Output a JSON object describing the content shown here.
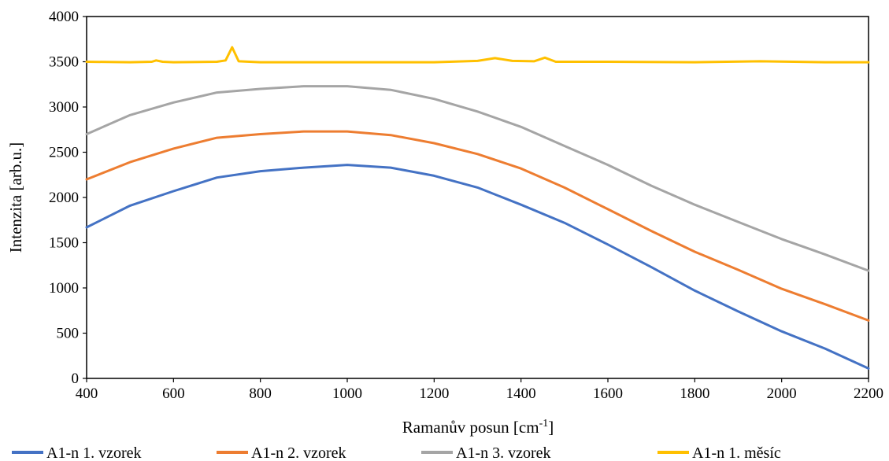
{
  "chart_data": {
    "type": "line",
    "title": "",
    "xlabel": "Ramanův posun [cm",
    "xlabel_sup": "-1",
    "xlabel_end": "]",
    "ylabel": "Intenzita [arb.u.]",
    "xlim": [
      400,
      2200
    ],
    "ylim": [
      0,
      4000
    ],
    "x_ticks": [
      400,
      600,
      800,
      1000,
      1200,
      1400,
      1600,
      1800,
      2000,
      2200
    ],
    "y_ticks": [
      0,
      500,
      1000,
      1500,
      2000,
      2500,
      3000,
      3500,
      4000
    ],
    "x_tick_labels": [
      "400",
      "600",
      "800",
      "1000",
      "1200",
      "1400",
      "1600",
      "1800",
      "2000",
      "2200"
    ],
    "y_tick_labels": [
      "0",
      "500",
      "1000",
      "1500",
      "2000",
      "2500",
      "3000",
      "3500",
      "4000"
    ],
    "grid": false,
    "legend_position": "bottom",
    "series": [
      {
        "name": "A1-n 1. vzorek",
        "color": "#4472C4",
        "x": [
          400,
          500,
          600,
          700,
          800,
          900,
          1000,
          1100,
          1200,
          1300,
          1400,
          1500,
          1600,
          1700,
          1800,
          1900,
          2000,
          2100,
          2200
        ],
        "y": [
          1670,
          1910,
          2070,
          2220,
          2290,
          2330,
          2360,
          2330,
          2240,
          2110,
          1920,
          1720,
          1480,
          1230,
          970,
          740,
          520,
          330,
          110
        ]
      },
      {
        "name": "A1-n 2. vzorek",
        "color": "#ED7D31",
        "x": [
          400,
          500,
          600,
          700,
          800,
          900,
          1000,
          1100,
          1200,
          1300,
          1400,
          1500,
          1600,
          1700,
          1800,
          1900,
          2000,
          2100,
          2200
        ],
        "y": [
          2200,
          2390,
          2540,
          2660,
          2700,
          2730,
          2730,
          2690,
          2600,
          2480,
          2320,
          2110,
          1870,
          1630,
          1400,
          1200,
          990,
          820,
          640
        ]
      },
      {
        "name": "A1-n 3. vzorek",
        "color": "#A5A5A5",
        "x": [
          400,
          500,
          600,
          700,
          800,
          900,
          1000,
          1100,
          1200,
          1300,
          1400,
          1500,
          1600,
          1700,
          1800,
          1900,
          2000,
          2100,
          2200
        ],
        "y": [
          2700,
          2910,
          3050,
          3160,
          3200,
          3230,
          3230,
          3190,
          3090,
          2950,
          2780,
          2570,
          2360,
          2130,
          1920,
          1730,
          1540,
          1370,
          1190
        ]
      },
      {
        "name": "A1-n 1. měsíc",
        "color": "#FFC000",
        "x": [
          400,
          500,
          550,
          560,
          575,
          600,
          700,
          720,
          735,
          750,
          800,
          1000,
          1200,
          1300,
          1340,
          1380,
          1430,
          1455,
          1480,
          1600,
          1800,
          1950,
          2100,
          2200
        ],
        "y": [
          3500,
          3495,
          3500,
          3515,
          3500,
          3495,
          3500,
          3515,
          3660,
          3505,
          3495,
          3495,
          3495,
          3510,
          3540,
          3510,
          3505,
          3545,
          3500,
          3500,
          3495,
          3505,
          3495,
          3495
        ]
      }
    ]
  }
}
